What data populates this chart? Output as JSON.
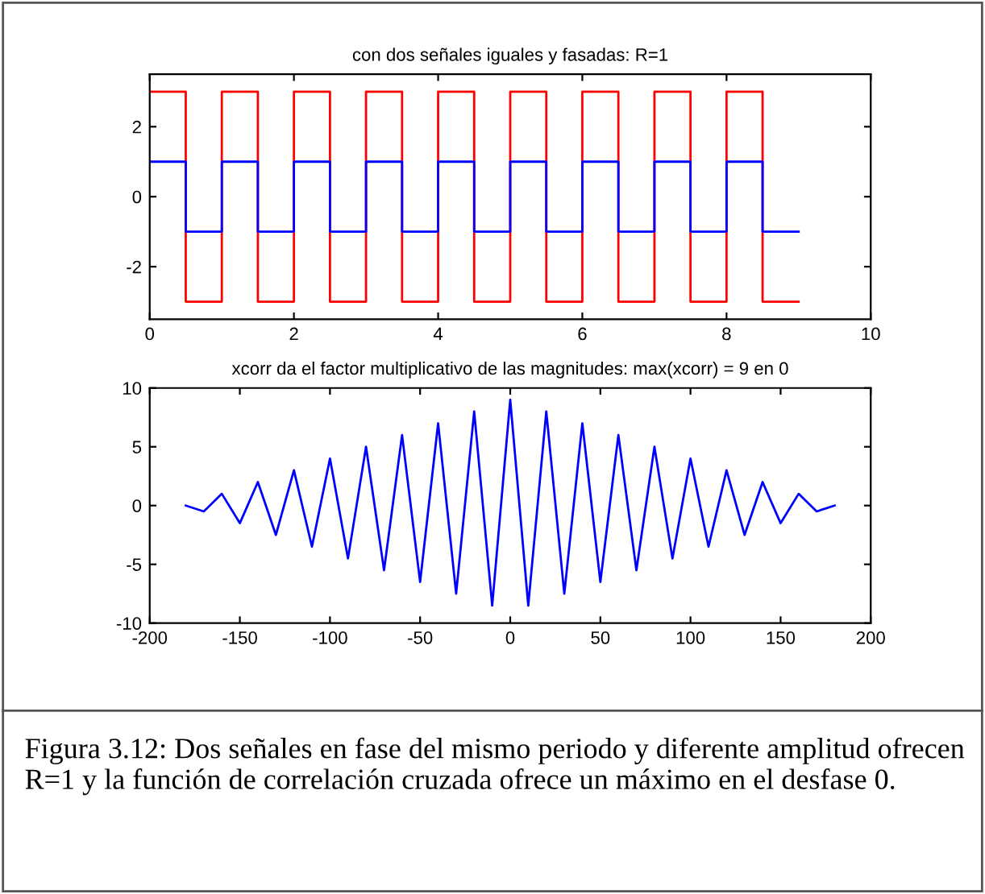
{
  "chart_data": [
    {
      "type": "step",
      "title": "con dos señales iguales y fasadas: R=1",
      "x": [
        0,
        0.5,
        1,
        1.5,
        2,
        2.5,
        3,
        3.5,
        4,
        4.5,
        5,
        5.5,
        6,
        6.5,
        7,
        7.5,
        8,
        8.5,
        9
      ],
      "series": [
        {
          "color": "#ff0000",
          "values": [
            3,
            -3,
            3,
            -3,
            3,
            -3,
            3,
            -3,
            3,
            -3,
            3,
            -3,
            3,
            -3,
            3,
            -3,
            3,
            -3,
            -3
          ]
        },
        {
          "color": "#0000ff",
          "values": [
            1,
            -1,
            1,
            -1,
            1,
            -1,
            1,
            -1,
            1,
            -1,
            1,
            -1,
            1,
            -1,
            1,
            -1,
            1,
            -1,
            -1
          ]
        }
      ],
      "xlim": [
        0,
        10
      ],
      "xticks": [
        0,
        2,
        4,
        6,
        8,
        10
      ],
      "ylim": [
        -3.5,
        3.5
      ],
      "yticks": [
        -2,
        0,
        2
      ],
      "grid": false,
      "legend": false
    },
    {
      "type": "line",
      "title": "xcorr da el factor multiplicativo de las magnitudes: max(xcorr) = 9 en 0",
      "x": [
        -180,
        -170,
        -160,
        -150,
        -140,
        -130,
        -120,
        -110,
        -100,
        -90,
        -80,
        -70,
        -60,
        -50,
        -40,
        -30,
        -20,
        -10,
        0,
        10,
        20,
        30,
        40,
        50,
        60,
        70,
        80,
        90,
        100,
        110,
        120,
        130,
        140,
        150,
        160,
        170,
        180
      ],
      "series": [
        {
          "color": "#0000ff",
          "values": [
            0,
            -0.5,
            1,
            -1.5,
            2,
            -2.5,
            3,
            -3.5,
            4,
            -4.5,
            5,
            -5.5,
            6,
            -6.5,
            7,
            -7.5,
            8,
            -8.5,
            9,
            -8.5,
            8,
            -7.5,
            7,
            -6.5,
            6,
            -5.5,
            5,
            -4.5,
            4,
            -3.5,
            3,
            -2.5,
            2,
            -1.5,
            1,
            -0.5,
            0
          ]
        }
      ],
      "xlim": [
        -200,
        200
      ],
      "xticks": [
        -200,
        -150,
        -100,
        -50,
        0,
        50,
        100,
        150,
        200
      ],
      "ylim": [
        -10,
        10
      ],
      "yticks": [
        -10,
        -5,
        0,
        5,
        10
      ],
      "grid": false,
      "legend": false,
      "annotations": [
        "Figura 3.12: Dos señales en fase del mismo periodo y diferente amplitud ofrecen R=1 y la función de correlación cruzada ofrece un máximo en el desfase 0."
      ]
    }
  ]
}
